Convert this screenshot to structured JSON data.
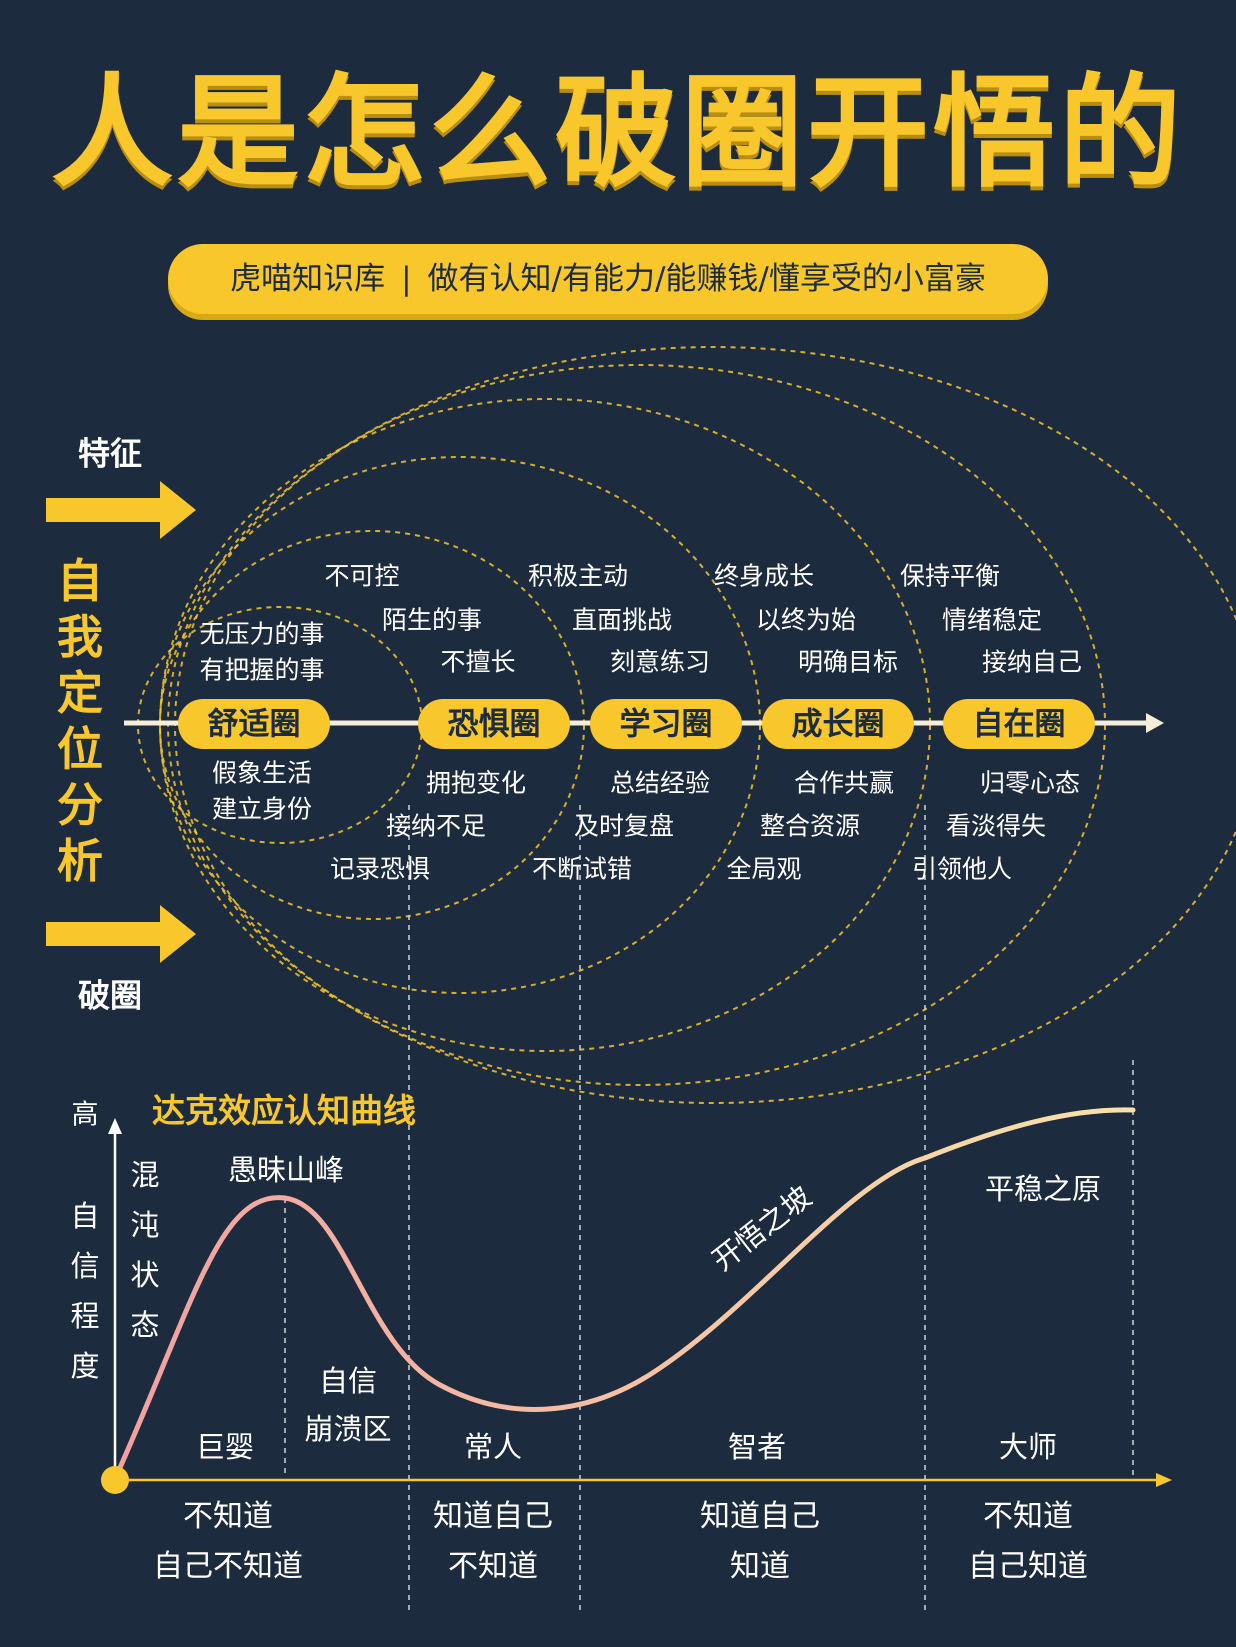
{
  "header": {
    "title": "人是怎么破圈开悟的",
    "brand": "虎喵知识库",
    "separator": "|",
    "slogan": "做有认知/有能力/能赚钱/懂享受的小富豪"
  },
  "side": {
    "top_label": "特征",
    "bottom_label": "破圈",
    "vertical_label": "自我定位分析"
  },
  "circles": [
    {
      "name": "舒适圈",
      "above": [
        "无压力的事",
        "有把握的事"
      ],
      "below": [
        "假象生活",
        "建立身份"
      ]
    },
    {
      "name": "恐惧圈",
      "above": [
        "不可控",
        "陌生的事",
        "不擅长"
      ],
      "below": [
        "拥抱变化",
        "接纳不足",
        "记录恐惧"
      ]
    },
    {
      "name": "学习圈",
      "above": [
        "积极主动",
        "直面挑战",
        "刻意练习"
      ],
      "below": [
        "总结经验",
        "及时复盘",
        "不断试错"
      ]
    },
    {
      "name": "成长圈",
      "above": [
        "终身成长",
        "以终为始",
        "明确目标"
      ],
      "below": [
        "合作共赢",
        "整合资源",
        "全局观"
      ]
    },
    {
      "name": "自在圈",
      "above": [
        "保持平衡",
        "情绪稳定",
        "接纳自己"
      ],
      "below": [
        "归零心态",
        "看淡得失",
        "引领他人"
      ]
    }
  ],
  "curve": {
    "title": "达克效应认知曲线",
    "y_high": "高",
    "y_label": "自信程度",
    "state_label": "混沌状态",
    "peak_label": "愚昧山峰",
    "collapse_label": "自信崩溃区",
    "slope_label": "开悟之坡",
    "plateau_label": "平稳之原",
    "stages": [
      "巨婴",
      "常人",
      "智者",
      "大师"
    ],
    "x_labels": [
      [
        "不知道",
        "自己不知道"
      ],
      [
        "知道自己",
        "不知道"
      ],
      [
        "知道自己",
        "知道"
      ],
      [
        "不知道",
        "自己知道"
      ]
    ]
  },
  "colors": {
    "background": "#1c2b3e",
    "accent": "#f7c72c",
    "curve_start": "#f2a0a0",
    "curve_end": "#f8e2a8"
  }
}
